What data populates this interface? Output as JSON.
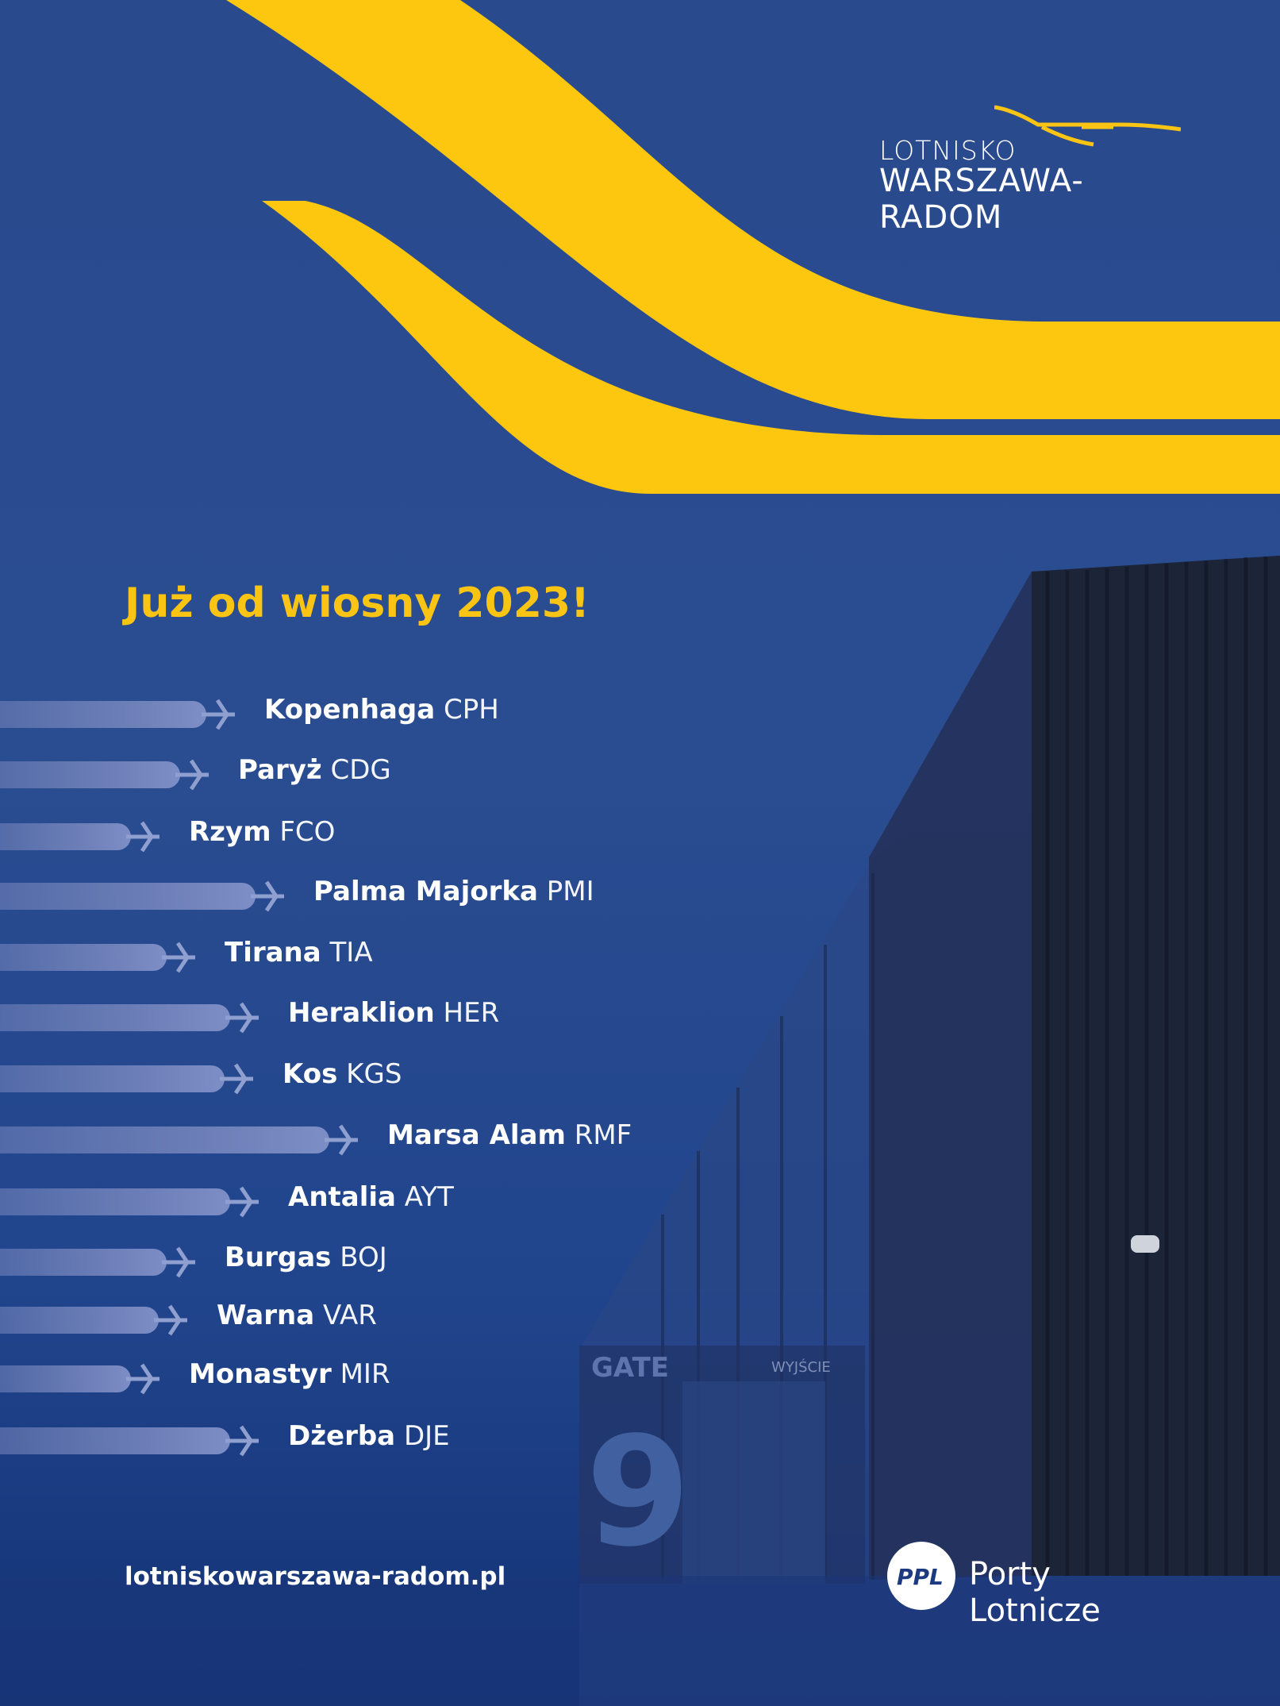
{
  "brand": {
    "line1": "LOTNISKO",
    "line2": "WARSZAWA-RADOM",
    "plane_icon": "plane-icon",
    "accent_color": "#f9c413",
    "background_color": "#2a4a8e"
  },
  "headline": "Już od wiosny 2023!",
  "destinations": [
    {
      "city": "Kopenhaga",
      "code": "CPH"
    },
    {
      "city": "Paryż",
      "code": "CDG"
    },
    {
      "city": "Rzym",
      "code": "FCO"
    },
    {
      "city": "Palma Majorka",
      "code": "PMI"
    },
    {
      "city": "Tirana",
      "code": "TIA"
    },
    {
      "city": "Heraklion",
      "code": "HER"
    },
    {
      "city": "Kos",
      "code": "KGS"
    },
    {
      "city": "Marsa Alam",
      "code": "RMF"
    },
    {
      "city": "Antalia",
      "code": "AYT"
    },
    {
      "city": "Burgas",
      "code": "BOJ"
    },
    {
      "city": "Warna",
      "code": "VAR"
    },
    {
      "city": "Monastyr",
      "code": "MIR"
    },
    {
      "city": "Dżerba",
      "code": "DJE"
    }
  ],
  "background_photo": {
    "gate_label": "GATE",
    "gate_number": "9",
    "exit_label": "WYJŚCIE"
  },
  "footer": {
    "website": "lotniskowarszawa-radom.pl",
    "ppl_badge": "PPL",
    "ppl_name": "Porty Lotnicze"
  }
}
